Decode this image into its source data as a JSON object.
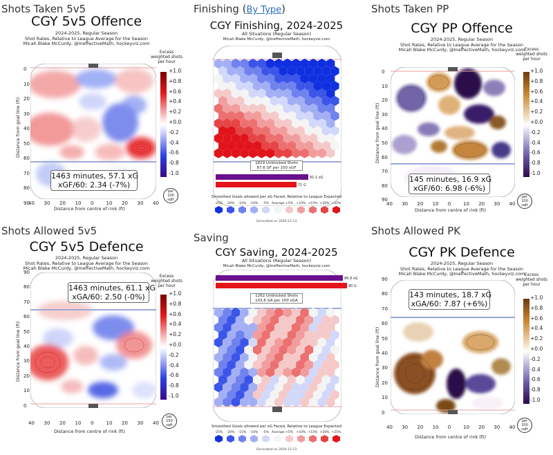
{
  "panels": {
    "p1": {
      "heading": "Shots Taken 5v5",
      "title": "CGY 5v5 Offence",
      "sub": [
        "2024-2025, Regular Season",
        "Shot Rates, Relative to League Average for the Season",
        "Micah Blake McCurdy, @IneffectiveMath, hockeyviz.com"
      ],
      "ylabel": "Distance from goal line (ft)",
      "xlabel": "Distance from centre of rink (ft)",
      "yticks": [
        "0",
        "10",
        "20",
        "30",
        "40",
        "50",
        "60",
        "70",
        "80",
        "90"
      ],
      "xticks": [
        "40",
        "30",
        "20",
        "10",
        "0",
        "10",
        "20",
        "30",
        "40"
      ],
      "stat": [
        "1463 minutes, 57.1 xG",
        "xGF/60: 2.34 (-7%)"
      ],
      "cbar_title": "Excess weighted shots per hour",
      "cbar_labels": [
        "+1.0",
        "+0.8",
        "+0.6",
        "+0.4",
        "+0.2",
        "+0.0",
        "-0.2",
        "-0.4",
        "-0.6",
        "-0.8",
        "-1.0"
      ],
      "per": [
        "per",
        "100",
        "sqft"
      ]
    },
    "p2": {
      "heading": "Finishing",
      "link": "By Type",
      "title": "CGY Finishing, 2024-2025",
      "sub": [
        "All Situations (Regular Season)",
        "Micah Blake McCurdy, @IneffectiveMath, hockeyviz.com"
      ],
      "summary": [
        "1829 Unblocked Shots",
        "87.6 GF per 100 xGF"
      ],
      "bars": [
        {
          "label": "81.1 xG",
          "value": 81.1,
          "color": "#6a0f8e"
        },
        {
          "label": "71 G",
          "value": 71,
          "color": "#e5141b"
        }
      ],
      "legend_title": "Smoothed Goals allowed per xG Faced, Relative to League Expected",
      "generated": "Generated on 2024-12-13"
    },
    "p3": {
      "heading": "Shots Taken PP",
      "title": "CGY PP Offence",
      "sub": [
        "2024-2025, Regular Season",
        "Shot Rates, Relative to League Average for the Season",
        "Micah Blake McCurdy, @IneffectiveMath, hockeyviz.com"
      ],
      "ylabel": "Distance from goal line (ft)",
      "xlabel": "Distance from centre of rink (ft)",
      "yticks": [
        "0",
        "10",
        "20",
        "30",
        "40",
        "50",
        "60",
        "70",
        "80",
        "90"
      ],
      "xticks": [
        "40",
        "30",
        "20",
        "10",
        "0",
        "10",
        "20",
        "30",
        "40"
      ],
      "stat": [
        "145 minutes, 16.9 xG",
        "xGF/60: 6.98 (-6%)"
      ],
      "cbar_title": "Excess weighted shots per hour",
      "cbar_labels": [
        "+1.0",
        "+0.8",
        "+0.6",
        "+0.4",
        "+0.2",
        "+0.0",
        "-0.2",
        "-0.4",
        "-0.6",
        "-0.8",
        "-1.0"
      ],
      "per": [
        "per",
        "100",
        "sqft"
      ]
    },
    "p4": {
      "heading": "Shots Allowed 5v5",
      "title": "CGY 5v5 Defence",
      "sub": [
        "2024-2025, Regular Season",
        "Shot Rates, Relative to League Average for the Season",
        "Micah Blake McCurdy, @IneffectiveMath, hockeyviz.com"
      ],
      "ylabel": "Distance from goal line (ft)",
      "xlabel": "Distance from centre of rink (ft)",
      "yticks": [
        "90",
        "80",
        "70",
        "60",
        "50",
        "40",
        "30",
        "20",
        "10",
        "0"
      ],
      "xticks": [
        "40",
        "30",
        "20",
        "10",
        "0",
        "10",
        "20",
        "30",
        "40"
      ],
      "stat": [
        "1463 minutes, 61.1 xG",
        "xGA/60: 2.50 (-0%)"
      ],
      "cbar_title": "Excess weighted shots per hour",
      "cbar_labels": [
        "+1.0",
        "+0.8",
        "+0.6",
        "+0.4",
        "+0.2",
        "+0.0",
        "-0.2",
        "-0.4",
        "-0.6",
        "-0.8",
        "-1.0"
      ],
      "per": [
        "per",
        "100",
        "sqft"
      ]
    },
    "p5": {
      "heading": "Saving",
      "title": "CGY Saving, 2024-2025",
      "sub": [
        "All Situations (Regular Season)",
        "Micah Blake McCurdy, @IneffectiveMath, hockeyviz.com"
      ],
      "summary": [
        "1262 Unblocked Shots",
        "103.6 GA per 100 xGA"
      ],
      "bars": [
        {
          "label": "86.8 xG",
          "value": 86.8,
          "color": "#6a0f8e"
        },
        {
          "label": "90 G",
          "value": 90,
          "color": "#e5141b"
        }
      ],
      "legend_title": "Smoothed Goals allowed per xG Faced, Relative to League Expected",
      "generated": "Generated on 2024-12-13"
    },
    "p6": {
      "heading": "Shots Allowed PK",
      "title": "CGY PK Defence",
      "sub": [
        "2024-2025, Regular Season",
        "Shot Rates, Relative to League Average for the Season",
        "Micah Blake McCurdy, @IneffectiveMath, hockeyviz.com"
      ],
      "ylabel": "Distance from goal line (ft)",
      "xlabel": "Distance from centre of rink (ft)",
      "yticks": [
        "90",
        "80",
        "70",
        "60",
        "50",
        "40",
        "30",
        "20",
        "10",
        "0"
      ],
      "xticks": [
        "40",
        "30",
        "20",
        "10",
        "0",
        "10",
        "20",
        "30",
        "40"
      ],
      "stat": [
        "143 minutes, 18.7 xG",
        "xGA/60: 7.87 (+6%)"
      ],
      "cbar_title": "Excess weighted shots per hour",
      "cbar_labels": [
        "+1.0",
        "+0.8",
        "+0.6",
        "+0.4",
        "+0.2",
        "+0.0",
        "-0.2",
        "-0.4",
        "-0.6",
        "-0.8",
        "-1.0"
      ],
      "per": [
        "per",
        "100",
        "sqft"
      ]
    }
  },
  "legend": {
    "labels": [
      "-25%",
      "-20%",
      "-15%",
      "-10%",
      "-5%",
      "Average",
      "+5%",
      "+10%",
      "+15%",
      "+20%",
      "+25%"
    ],
    "colors": [
      "#1030e0",
      "#3b55e8",
      "#6f82ee",
      "#a3aff4",
      "#d2d8fa",
      "#f4f4f4",
      "#f6c9c9",
      "#f29d9d",
      "#ec7070",
      "#e64545",
      "#e0141b"
    ]
  },
  "chart_data": [
    {
      "type": "heatmap",
      "title": "CGY 5v5 Offence",
      "xlabel": "Distance from centre of rink (ft)",
      "ylabel": "Distance from goal line (ft)",
      "xlim": [
        -40,
        40
      ],
      "ylim": [
        0,
        90
      ],
      "colorbar": [
        -1.0,
        1.0
      ],
      "xG": 57.1,
      "minutes": 1463,
      "xGF_per_60": 2.34,
      "relative": "-7%"
    },
    {
      "type": "heatmap",
      "title": "CGY Finishing, 2024-2025",
      "unblocked_shots": 1829,
      "GF_per_100_xGF": 87.6,
      "xG": 81.1,
      "G": 71
    },
    {
      "type": "heatmap",
      "title": "CGY PP Offence",
      "xlabel": "Distance from centre of rink (ft)",
      "ylabel": "Distance from goal line (ft)",
      "xlim": [
        -40,
        40
      ],
      "ylim": [
        0,
        90
      ],
      "colorbar": [
        -1.0,
        1.0
      ],
      "xG": 16.9,
      "minutes": 145,
      "xGF_per_60": 6.98,
      "relative": "-6%"
    },
    {
      "type": "heatmap",
      "title": "CGY 5v5 Defence",
      "xlabel": "Distance from centre of rink (ft)",
      "ylabel": "Distance from goal line (ft)",
      "xlim": [
        -40,
        40
      ],
      "ylim": [
        0,
        90
      ],
      "colorbar": [
        -1.0,
        1.0
      ],
      "xG": 61.1,
      "minutes": 1463,
      "xGA_per_60": 2.5,
      "relative": "-0%"
    },
    {
      "type": "heatmap",
      "title": "CGY Saving, 2024-2025",
      "unblocked_shots": 1262,
      "GA_per_100_xGA": 103.6,
      "xG": 86.8,
      "G": 90
    },
    {
      "type": "heatmap",
      "title": "CGY PK Defence",
      "xlabel": "Distance from centre of rink (ft)",
      "ylabel": "Distance from goal line (ft)",
      "xlim": [
        -40,
        40
      ],
      "ylim": [
        0,
        90
      ],
      "colorbar": [
        -1.0,
        1.0
      ],
      "xG": 18.7,
      "minutes": 143,
      "xGA_per_60": 7.87,
      "relative": "+6%"
    }
  ]
}
